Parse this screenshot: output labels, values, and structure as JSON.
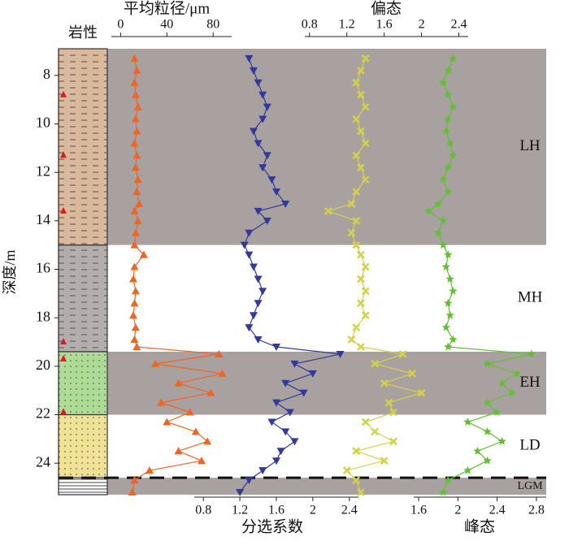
{
  "chart_data": {
    "type": "depth-profile",
    "y_label": "深度/m",
    "ylim": [
      6.9,
      25.3
    ],
    "yticks": [
      8,
      10,
      12,
      14,
      16,
      18,
      20,
      22,
      24
    ],
    "lithology_label": "岩性",
    "lithology": [
      {
        "top": 6.9,
        "bottom": 15.0,
        "color": "#d9b89b",
        "pattern": "dash"
      },
      {
        "top": 15.0,
        "bottom": 19.4,
        "color": "#b3adad",
        "pattern": "dash"
      },
      {
        "top": 19.4,
        "bottom": 22.0,
        "color": "#aedb96",
        "pattern": "dot"
      },
      {
        "top": 22.0,
        "bottom": 24.6,
        "color": "#efe294",
        "pattern": "dot"
      },
      {
        "top": 24.6,
        "bottom": 25.3,
        "color": "#ffffff",
        "pattern": "line"
      }
    ],
    "samples": [
      8.8,
      11.3,
      13.6,
      19.0,
      19.7,
      21.9
    ],
    "zones": [
      {
        "label": "LH",
        "top": 6.9,
        "bottom": 15.0,
        "shaded": true
      },
      {
        "label": "MH",
        "top": 15.0,
        "bottom": 19.4,
        "shaded": false
      },
      {
        "label": "EH",
        "top": 19.4,
        "bottom": 22.0,
        "shaded": true
      },
      {
        "label": "LD",
        "top": 22.0,
        "bottom": 24.6,
        "shaded": false
      },
      {
        "label": "LGM",
        "top": 24.6,
        "bottom": 25.3,
        "shaded": true
      }
    ],
    "boundary_dashed": 24.6,
    "depth": [
      7.3,
      7.8,
      8.3,
      8.8,
      9.3,
      9.8,
      10.3,
      10.8,
      11.3,
      11.8,
      12.3,
      12.8,
      13.3,
      13.6,
      14.0,
      14.5,
      15.0,
      15.4,
      15.9,
      16.4,
      16.9,
      17.4,
      17.9,
      18.4,
      18.9,
      19.2,
      19.5,
      19.9,
      20.3,
      20.7,
      21.1,
      21.5,
      21.9,
      22.3,
      22.7,
      23.1,
      23.5,
      23.9,
      24.3,
      24.7,
      25.2
    ],
    "series": [
      {
        "name": "平均粒径/μm",
        "color": "#f06424",
        "marker": "triangle-up",
        "axis": "top",
        "xlim": [
          -8,
          96
        ],
        "xticks": [
          0,
          40,
          80
        ],
        "values": [
          12,
          14,
          12,
          13,
          15,
          13,
          14,
          12,
          14,
          13,
          15,
          14,
          16,
          12,
          15,
          13,
          12,
          20,
          12,
          11,
          13,
          12,
          11,
          13,
          12,
          14,
          85,
          30,
          88,
          50,
          78,
          35,
          60,
          40,
          65,
          75,
          50,
          70,
          25,
          12,
          10
        ]
      },
      {
        "name": "分选系数",
        "color": "#33399a",
        "marker": "triangle-down",
        "axis": "bottom",
        "xlim": [
          0.7,
          2.5
        ],
        "xticks": [
          0.8,
          1.2,
          1.6,
          2.0,
          2.4
        ],
        "values": [
          1.3,
          1.35,
          1.4,
          1.45,
          1.5,
          1.45,
          1.35,
          1.4,
          1.5,
          1.45,
          1.55,
          1.6,
          1.7,
          1.4,
          1.5,
          1.3,
          1.25,
          1.3,
          1.35,
          1.4,
          1.45,
          1.4,
          1.35,
          1.3,
          1.4,
          1.6,
          2.3,
          1.8,
          2.0,
          1.7,
          1.9,
          1.6,
          1.75,
          1.55,
          1.7,
          1.8,
          1.65,
          1.6,
          1.45,
          1.3,
          1.2
        ]
      },
      {
        "name": "偏态",
        "color": "#d2d24a",
        "marker": "cross",
        "axis": "top",
        "xlim": [
          0.75,
          2.5
        ],
        "xticks": [
          0.8,
          1.2,
          1.6,
          2.0,
          2.4
        ],
        "values": [
          1.4,
          1.35,
          1.3,
          1.35,
          1.4,
          1.3,
          1.35,
          1.4,
          1.3,
          1.35,
          1.4,
          1.3,
          1.25,
          1.0,
          1.3,
          1.25,
          1.3,
          1.35,
          1.4,
          1.35,
          1.4,
          1.35,
          1.4,
          1.3,
          1.25,
          1.35,
          1.8,
          1.5,
          1.9,
          1.6,
          2.0,
          1.65,
          1.7,
          1.4,
          1.5,
          1.7,
          1.3,
          1.6,
          1.2,
          1.3,
          1.35
        ]
      },
      {
        "name": "峰态",
        "color": "#62bf33",
        "marker": "star",
        "axis": "bottom",
        "xlim": [
          1.55,
          2.9
        ],
        "xticks": [
          1.6,
          2.0,
          2.4,
          2.8
        ],
        "values": [
          1.95,
          1.9,
          1.85,
          1.9,
          1.95,
          1.9,
          1.88,
          1.92,
          1.95,
          1.9,
          1.85,
          1.9,
          1.8,
          1.7,
          1.85,
          1.8,
          1.85,
          1.9,
          1.88,
          1.92,
          1.95,
          1.9,
          1.92,
          1.88,
          1.95,
          1.9,
          2.75,
          2.3,
          2.6,
          2.45,
          2.55,
          2.3,
          2.4,
          2.1,
          2.3,
          2.45,
          2.2,
          2.3,
          2.1,
          1.9,
          1.85
        ]
      }
    ]
  }
}
